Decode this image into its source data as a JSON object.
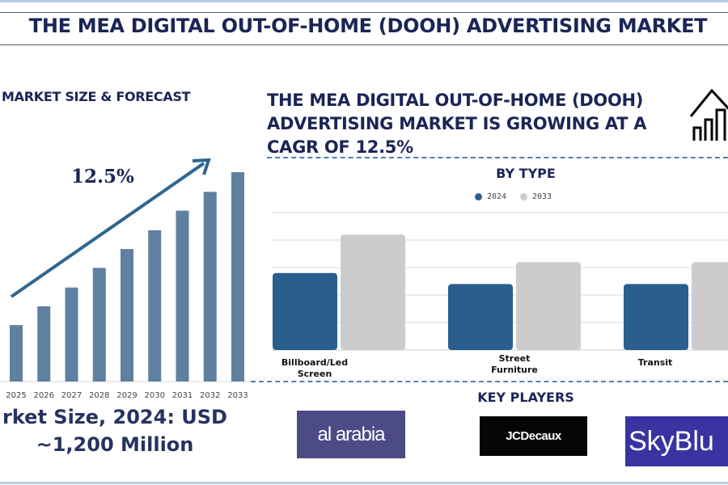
{
  "header": {
    "title": "THE MEA DIGITAL OUT-OF-HOME (DOOH) ADVERTISING MARKET"
  },
  "left_panel": {
    "title": "MARKET SIZE & FORECAST",
    "cagr_label": "12.5%",
    "market_size_line1": "rket Size, 2024: USD",
    "market_size_line2": "~1,200 Million"
  },
  "headline": "THE MEA DIGITAL OUT-OF-HOME (DOOH) ADVERTISING MARKET IS GROWING AT A CAGR OF 12.5%",
  "icons": {
    "growth": "house-growth-chart-icon",
    "arrow": "trend-arrow-up"
  },
  "colors": {
    "title": "#1b2556",
    "forecast_bar": "#5f80a0",
    "series_2024": "#2a5f8d",
    "series_2033": "#cccccc"
  },
  "key_players": {
    "title": "KEY PLAYERS",
    "logos": [
      {
        "name": "al arabia",
        "bg": "#4d4a88"
      },
      {
        "name": "JCDecaux",
        "bg": "#050505"
      },
      {
        "name": "SkyBlu",
        "bg": "#3a34a2"
      }
    ]
  },
  "chart_data": [
    {
      "type": "bar",
      "title": "MARKET SIZE & FORECAST",
      "categories": [
        "2025",
        "2026",
        "2027",
        "2028",
        "2029",
        "2030",
        "2031",
        "2032",
        "2033"
      ],
      "values": [
        69,
        92,
        115,
        139,
        162,
        185,
        209,
        232,
        256
      ],
      "annotation": "12.5%",
      "grid": false,
      "ylim": [
        0,
        260
      ]
    },
    {
      "type": "bar",
      "title": "BY TYPE",
      "categories": [
        "Billboard/Led Screen",
        "Street Furniture",
        "Transit"
      ],
      "series": [
        {
          "name": "2024",
          "values": [
            2.8,
            2.4,
            2.4
          ]
        },
        {
          "name": "2033",
          "values": [
            4.2,
            3.2,
            3.2
          ]
        }
      ],
      "ylim": [
        0,
        5
      ],
      "grid": true,
      "legend": "top-center"
    }
  ]
}
